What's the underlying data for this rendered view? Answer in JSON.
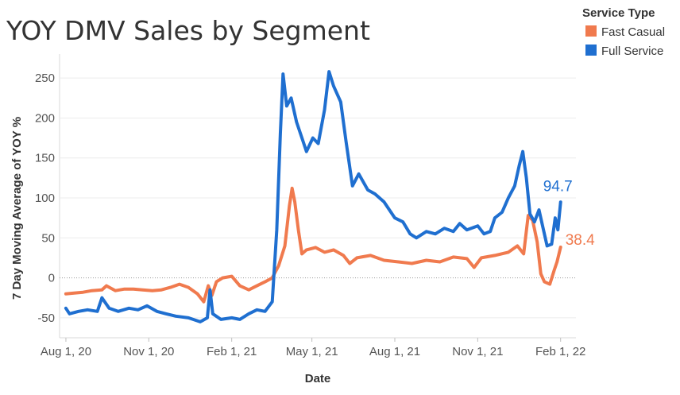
{
  "chart_data": {
    "type": "line",
    "title": "YOY DMV Sales by Segment",
    "xlabel": "Date",
    "ylabel": "7 Day Moving Average of YOY %",
    "x_ticks": [
      "Aug 1, 20",
      "Nov 1, 20",
      "Feb 1, 21",
      "May 1, 21",
      "Aug 1, 21",
      "Nov 1, 21",
      "Feb 1, 22"
    ],
    "y_ticks": [
      "250",
      "200",
      "150",
      "100",
      "50",
      "0",
      "-50"
    ],
    "xlim": [
      "2020-07-25",
      "2022-02-18"
    ],
    "ylim": [
      -75,
      280
    ],
    "legend": {
      "title": "Service Type",
      "position": "top-right"
    },
    "series": [
      {
        "name": "Fast Casual",
        "color": "#f07a4e",
        "end_label": "38.4",
        "points": [
          [
            "2020-08-01",
            -20
          ],
          [
            "2020-08-10",
            -19
          ],
          [
            "2020-08-20",
            -18
          ],
          [
            "2020-08-30",
            -16
          ],
          [
            "2020-09-10",
            -15
          ],
          [
            "2020-09-15",
            -10
          ],
          [
            "2020-09-25",
            -16
          ],
          [
            "2020-10-05",
            -14
          ],
          [
            "2020-10-15",
            -14
          ],
          [
            "2020-10-25",
            -15
          ],
          [
            "2020-11-05",
            -16
          ],
          [
            "2020-11-15",
            -15
          ],
          [
            "2020-11-25",
            -12
          ],
          [
            "2020-12-05",
            -8
          ],
          [
            "2020-12-15",
            -12
          ],
          [
            "2020-12-25",
            -20
          ],
          [
            "2021-01-01",
            -30
          ],
          [
            "2021-01-06",
            -10
          ],
          [
            "2021-01-10",
            -22
          ],
          [
            "2021-01-15",
            -5
          ],
          [
            "2021-01-22",
            0
          ],
          [
            "2021-02-01",
            2
          ],
          [
            "2021-02-10",
            -10
          ],
          [
            "2021-02-20",
            -15
          ],
          [
            "2021-03-01",
            -10
          ],
          [
            "2021-03-10",
            -5
          ],
          [
            "2021-03-18",
            0
          ],
          [
            "2021-03-25",
            15
          ],
          [
            "2021-04-01",
            40
          ],
          [
            "2021-04-06",
            90
          ],
          [
            "2021-04-09",
            112
          ],
          [
            "2021-04-12",
            95
          ],
          [
            "2021-04-16",
            60
          ],
          [
            "2021-04-20",
            30
          ],
          [
            "2021-04-25",
            35
          ],
          [
            "2021-05-05",
            38
          ],
          [
            "2021-05-15",
            32
          ],
          [
            "2021-05-25",
            35
          ],
          [
            "2021-06-05",
            28
          ],
          [
            "2021-06-12",
            18
          ],
          [
            "2021-06-20",
            25
          ],
          [
            "2021-07-05",
            28
          ],
          [
            "2021-07-20",
            22
          ],
          [
            "2021-08-05",
            20
          ],
          [
            "2021-08-20",
            18
          ],
          [
            "2021-09-05",
            22
          ],
          [
            "2021-09-20",
            20
          ],
          [
            "2021-10-05",
            26
          ],
          [
            "2021-10-20",
            24
          ],
          [
            "2021-10-28",
            13
          ],
          [
            "2021-11-05",
            25
          ],
          [
            "2021-11-20",
            28
          ],
          [
            "2021-12-05",
            32
          ],
          [
            "2021-12-15",
            40
          ],
          [
            "2021-12-22",
            30
          ],
          [
            "2021-12-27",
            78
          ],
          [
            "2022-01-01",
            72
          ],
          [
            "2022-01-06",
            45
          ],
          [
            "2022-01-10",
            5
          ],
          [
            "2022-01-14",
            -5
          ],
          [
            "2022-01-20",
            -8
          ],
          [
            "2022-01-25",
            10
          ],
          [
            "2022-01-28",
            20
          ],
          [
            "2022-02-01",
            38.4
          ]
        ]
      },
      {
        "name": "Full Service",
        "color": "#1f6fd0",
        "end_label": "94.7",
        "points": [
          [
            "2020-08-01",
            -38
          ],
          [
            "2020-08-05",
            -45
          ],
          [
            "2020-08-15",
            -42
          ],
          [
            "2020-08-25",
            -40
          ],
          [
            "2020-09-05",
            -42
          ],
          [
            "2020-09-10",
            -25
          ],
          [
            "2020-09-18",
            -38
          ],
          [
            "2020-09-28",
            -42
          ],
          [
            "2020-10-10",
            -38
          ],
          [
            "2020-10-20",
            -40
          ],
          [
            "2020-10-30",
            -35
          ],
          [
            "2020-11-10",
            -42
          ],
          [
            "2020-11-20",
            -45
          ],
          [
            "2020-12-01",
            -48
          ],
          [
            "2020-12-15",
            -50
          ],
          [
            "2020-12-28",
            -55
          ],
          [
            "2021-01-05",
            -50
          ],
          [
            "2021-01-08",
            -15
          ],
          [
            "2021-01-11",
            -45
          ],
          [
            "2021-01-20",
            -52
          ],
          [
            "2021-02-01",
            -50
          ],
          [
            "2021-02-10",
            -52
          ],
          [
            "2021-02-20",
            -45
          ],
          [
            "2021-03-01",
            -40
          ],
          [
            "2021-03-10",
            -42
          ],
          [
            "2021-03-18",
            -30
          ],
          [
            "2021-03-23",
            60
          ],
          [
            "2021-03-27",
            180
          ],
          [
            "2021-03-30",
            255
          ],
          [
            "2021-04-03",
            215
          ],
          [
            "2021-04-08",
            225
          ],
          [
            "2021-04-14",
            195
          ],
          [
            "2021-04-20",
            175
          ],
          [
            "2021-04-25",
            158
          ],
          [
            "2021-05-02",
            175
          ],
          [
            "2021-05-08",
            168
          ],
          [
            "2021-05-15",
            210
          ],
          [
            "2021-05-20",
            258
          ],
          [
            "2021-05-25",
            240
          ],
          [
            "2021-06-02",
            220
          ],
          [
            "2021-06-08",
            170
          ],
          [
            "2021-06-15",
            115
          ],
          [
            "2021-06-22",
            130
          ],
          [
            "2021-07-02",
            110
          ],
          [
            "2021-07-10",
            105
          ],
          [
            "2021-07-20",
            95
          ],
          [
            "2021-08-01",
            75
          ],
          [
            "2021-08-10",
            70
          ],
          [
            "2021-08-18",
            55
          ],
          [
            "2021-08-25",
            50
          ],
          [
            "2021-09-05",
            58
          ],
          [
            "2021-09-15",
            55
          ],
          [
            "2021-09-25",
            62
          ],
          [
            "2021-10-05",
            58
          ],
          [
            "2021-10-12",
            68
          ],
          [
            "2021-10-20",
            60
          ],
          [
            "2021-11-01",
            65
          ],
          [
            "2021-11-08",
            55
          ],
          [
            "2021-11-15",
            58
          ],
          [
            "2021-11-20",
            75
          ],
          [
            "2021-11-28",
            82
          ],
          [
            "2021-12-05",
            100
          ],
          [
            "2021-12-12",
            115
          ],
          [
            "2021-12-17",
            140
          ],
          [
            "2021-12-21",
            158
          ],
          [
            "2021-12-25",
            125
          ],
          [
            "2021-12-29",
            80
          ],
          [
            "2022-01-03",
            70
          ],
          [
            "2022-01-08",
            85
          ],
          [
            "2022-01-12",
            65
          ],
          [
            "2022-01-17",
            40
          ],
          [
            "2022-01-22",
            42
          ],
          [
            "2022-01-26",
            75
          ],
          [
            "2022-01-29",
            60
          ],
          [
            "2022-02-01",
            94.7
          ]
        ]
      }
    ]
  }
}
